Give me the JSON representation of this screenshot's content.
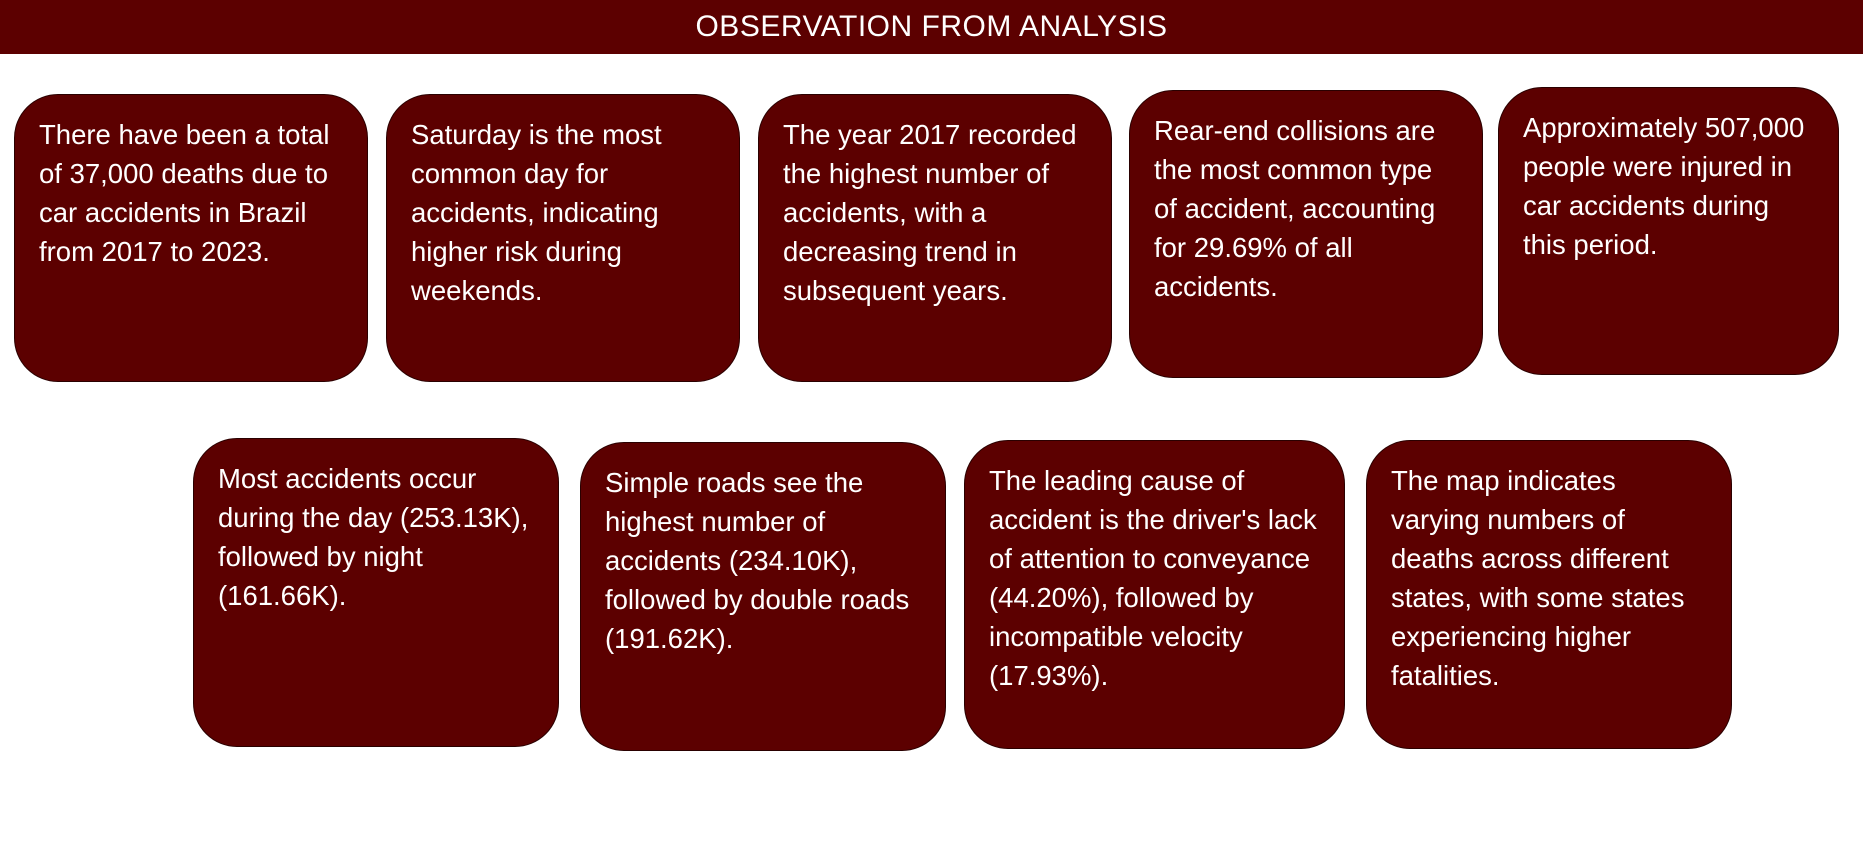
{
  "header": {
    "title": "OBSERVATION FROM ANALYSIS"
  },
  "colors": {
    "card_background": "#5c0000",
    "text": "#ffffff"
  },
  "observations": [
    {
      "text": "There have been a total of 37,000 deaths due to car accidents in Brazil from 2017 to 2023."
    },
    {
      "text": "Saturday is the most common day for accidents, indicating higher risk during weekends."
    },
    {
      "text": "The year 2017 recorded the highest number of accidents, with a decreasing trend in subsequent years."
    },
    {
      "text": "Rear-end collisions are the most common type of accident, accounting for 29.69% of all accidents."
    },
    {
      "text": "Approximately 507,000 people were injured in car accidents during this period."
    },
    {
      "text": "Most accidents occur during the day (253.13K), followed by night (161.66K)."
    },
    {
      "text": "Simple roads see the highest number of accidents (234.10K), followed by double roads (191.62K)."
    },
    {
      "text": "The leading cause of accident is the driver's lack of attention to conveyance (44.20%), followed by incompatible velocity (17.93%)."
    },
    {
      "text": "The map indicates varying numbers of deaths across different states, with some states experiencing higher fatalities."
    }
  ]
}
